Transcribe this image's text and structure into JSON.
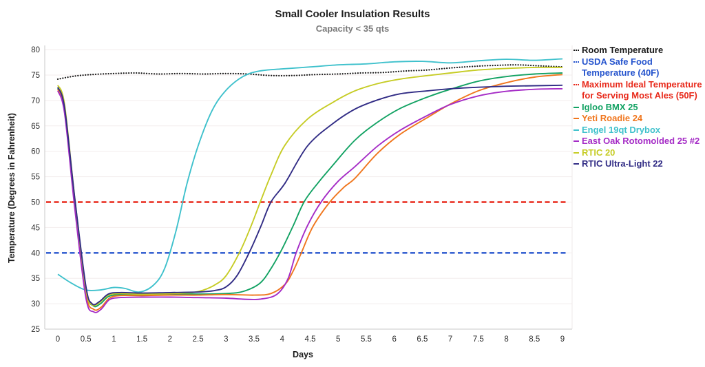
{
  "chart_data": {
    "type": "line",
    "title": "Small Cooler Insulation Results",
    "subtitle": "Capacity < 35 qts",
    "xlabel": "Days",
    "ylabel": "Temperature (Degrees in Fahrenheit)",
    "xlim": [
      0,
      9
    ],
    "ylim": [
      25,
      80
    ],
    "x_ticks": [
      0,
      0.5,
      1,
      1.5,
      2,
      2.5,
      3,
      3.5,
      4,
      4.5,
      5,
      5.5,
      6,
      6.5,
      7,
      7.5,
      8,
      8.5,
      9
    ],
    "y_ticks": [
      25,
      30,
      35,
      40,
      45,
      50,
      55,
      60,
      65,
      70,
      75,
      80
    ],
    "grid": true,
    "legend_position": "right",
    "series": [
      {
        "name": "Room Temperature",
        "legend_lines": [
          "Room Temperature"
        ],
        "color": "#1a1a1a",
        "dash": "dotted",
        "points": [
          [
            0,
            74.2
          ],
          [
            0.3,
            74.8
          ],
          [
            0.6,
            75.1
          ],
          [
            1,
            75.3
          ],
          [
            1.4,
            75.4
          ],
          [
            1.8,
            75.2
          ],
          [
            2.2,
            75.3
          ],
          [
            2.6,
            75.2
          ],
          [
            3,
            75.3
          ],
          [
            3.4,
            75.2
          ],
          [
            3.8,
            74.9
          ],
          [
            4.2,
            74.9
          ],
          [
            4.6,
            75.1
          ],
          [
            5,
            75.2
          ],
          [
            5.4,
            75.4
          ],
          [
            5.8,
            75.5
          ],
          [
            6.2,
            75.8
          ],
          [
            6.6,
            76.0
          ],
          [
            7,
            76.4
          ],
          [
            7.4,
            76.7
          ],
          [
            7.8,
            76.9
          ],
          [
            8.2,
            77.0
          ],
          [
            8.6,
            76.8
          ],
          [
            9,
            76.6
          ]
        ]
      },
      {
        "name": "USDA Safe Food Temperature (40F)",
        "legend_lines": [
          "USDA Safe Food",
          "Temperature (40F)"
        ],
        "color": "#2453cd",
        "dash": "dashed",
        "points": [
          [
            0,
            40
          ],
          [
            9,
            40
          ]
        ]
      },
      {
        "name": "Maximum Ideal Temperature for Serving Most Ales (50F)",
        "legend_lines": [
          "Maximum Ideal Temperature",
          "for Serving Most Ales (50F)"
        ],
        "color": "#e8291a",
        "dash": "dashed",
        "points": [
          [
            0,
            50
          ],
          [
            9,
            50
          ]
        ]
      },
      {
        "name": "Igloo BMX 25",
        "legend_lines": [
          "Igloo BMX 25"
        ],
        "color": "#12a263",
        "dash": "solid",
        "points": [
          [
            0,
            72.4
          ],
          [
            0.12,
            68
          ],
          [
            0.3,
            50.5
          ],
          [
            0.5,
            32.8
          ],
          [
            0.63,
            29.6
          ],
          [
            0.76,
            30.0
          ],
          [
            0.9,
            31.4
          ],
          [
            1.1,
            31.8
          ],
          [
            1.5,
            31.8
          ],
          [
            2,
            31.9
          ],
          [
            2.5,
            31.9
          ],
          [
            3,
            32.0
          ],
          [
            3.3,
            32.4
          ],
          [
            3.6,
            34.0
          ],
          [
            3.8,
            36.9
          ],
          [
            4,
            40.8
          ],
          [
            4.2,
            45.4
          ],
          [
            4.4,
            50.2
          ],
          [
            4.65,
            53.9
          ],
          [
            4.9,
            57.2
          ],
          [
            5.3,
            62.2
          ],
          [
            5.7,
            65.7
          ],
          [
            6.1,
            68.4
          ],
          [
            6.6,
            70.7
          ],
          [
            7,
            72.2
          ],
          [
            7.5,
            73.8
          ],
          [
            8,
            74.7
          ],
          [
            8.5,
            75.2
          ],
          [
            9,
            75.4
          ]
        ]
      },
      {
        "name": "Yeti Roadie 24",
        "legend_lines": [
          "Yeti Roadie 24"
        ],
        "color": "#f0761d",
        "dash": "solid",
        "points": [
          [
            0,
            72.2
          ],
          [
            0.12,
            67.8
          ],
          [
            0.3,
            50
          ],
          [
            0.5,
            32
          ],
          [
            0.64,
            28.9
          ],
          [
            0.77,
            29.3
          ],
          [
            0.92,
            31.1
          ],
          [
            1.1,
            31.6
          ],
          [
            1.5,
            31.6
          ],
          [
            2,
            31.7
          ],
          [
            2.5,
            31.7
          ],
          [
            3,
            31.8
          ],
          [
            3.5,
            31.7
          ],
          [
            3.8,
            32.0
          ],
          [
            4.05,
            33.8
          ],
          [
            4.2,
            36.5
          ],
          [
            4.35,
            40.2
          ],
          [
            4.55,
            45.2
          ],
          [
            4.85,
            50.0
          ],
          [
            5.1,
            52.9
          ],
          [
            5.3,
            54.7
          ],
          [
            5.7,
            59.6
          ],
          [
            6.1,
            63.3
          ],
          [
            6.6,
            66.7
          ],
          [
            7,
            69.3
          ],
          [
            7.5,
            71.9
          ],
          [
            8,
            73.5
          ],
          [
            8.5,
            74.6
          ],
          [
            9,
            75.1
          ]
        ]
      },
      {
        "name": "Engel 19qt Drybox",
        "legend_lines": [
          "Engel 19qt Drybox"
        ],
        "color": "#3fc1cc",
        "dash": "solid",
        "points": [
          [
            0,
            35.8
          ],
          [
            0.25,
            34.0
          ],
          [
            0.5,
            32.7
          ],
          [
            0.75,
            32.7
          ],
          [
            1,
            33.2
          ],
          [
            1.2,
            33.0
          ],
          [
            1.45,
            32.3
          ],
          [
            1.7,
            33.6
          ],
          [
            1.9,
            36.8
          ],
          [
            2.1,
            44.0
          ],
          [
            2.3,
            53.5
          ],
          [
            2.5,
            61.0
          ],
          [
            2.75,
            68.0
          ],
          [
            3,
            72.0
          ],
          [
            3.3,
            74.7
          ],
          [
            3.6,
            75.8
          ],
          [
            4,
            76.2
          ],
          [
            4.5,
            76.6
          ],
          [
            5,
            77.0
          ],
          [
            5.5,
            77.2
          ],
          [
            6,
            77.6
          ],
          [
            6.5,
            77.7
          ],
          [
            7,
            77.4
          ],
          [
            7.5,
            77.8
          ],
          [
            8,
            78.1
          ],
          [
            8.5,
            77.9
          ],
          [
            9,
            78.2
          ]
        ]
      },
      {
        "name": "East Oak Rotomolded 25 #2",
        "legend_lines": [
          "East Oak Rotomolded 25 #2"
        ],
        "color": "#a52cc6",
        "dash": "solid",
        "points": [
          [
            0,
            71.9
          ],
          [
            0.12,
            67.5
          ],
          [
            0.3,
            49
          ],
          [
            0.5,
            31.2
          ],
          [
            0.64,
            28.4
          ],
          [
            0.77,
            28.9
          ],
          [
            0.92,
            30.8
          ],
          [
            1.1,
            31.2
          ],
          [
            1.5,
            31.3
          ],
          [
            2,
            31.3
          ],
          [
            2.5,
            31.2
          ],
          [
            3,
            31.1
          ],
          [
            3.3,
            30.9
          ],
          [
            3.6,
            30.9
          ],
          [
            3.9,
            31.8
          ],
          [
            4.1,
            34.8
          ],
          [
            4.25,
            40.0
          ],
          [
            4.45,
            45.3
          ],
          [
            4.7,
            50.1
          ],
          [
            5,
            54.1
          ],
          [
            5.3,
            57.0
          ],
          [
            5.7,
            61.0
          ],
          [
            6.1,
            64.1
          ],
          [
            6.6,
            67.1
          ],
          [
            7,
            69.2
          ],
          [
            7.5,
            70.9
          ],
          [
            8,
            71.8
          ],
          [
            8.5,
            72.2
          ],
          [
            9,
            72.3
          ]
        ]
      },
      {
        "name": "RTIC 20",
        "legend_lines": [
          "RTIC 20"
        ],
        "color": "#c6cc25",
        "dash": "solid",
        "points": [
          [
            0,
            73.0
          ],
          [
            0.12,
            69.2
          ],
          [
            0.3,
            51
          ],
          [
            0.5,
            33
          ],
          [
            0.61,
            29.8
          ],
          [
            0.74,
            30.2
          ],
          [
            0.9,
            31.7
          ],
          [
            1.1,
            32.0
          ],
          [
            1.5,
            31.9
          ],
          [
            2,
            32.0
          ],
          [
            2.4,
            32.2
          ],
          [
            2.6,
            32.7
          ],
          [
            2.8,
            33.7
          ],
          [
            3,
            35.5
          ],
          [
            3.25,
            40.3
          ],
          [
            3.45,
            45.4
          ],
          [
            3.62,
            50.3
          ],
          [
            3.8,
            55.3
          ],
          [
            4.05,
            61.2
          ],
          [
            4.45,
            66.3
          ],
          [
            4.9,
            69.6
          ],
          [
            5.3,
            71.9
          ],
          [
            5.7,
            73.3
          ],
          [
            6.1,
            74.2
          ],
          [
            6.6,
            74.9
          ],
          [
            7,
            75.4
          ],
          [
            7.5,
            76.0
          ],
          [
            8,
            76.3
          ],
          [
            8.5,
            76.5
          ],
          [
            9,
            76.5
          ]
        ]
      },
      {
        "name": "RTIC Ultra-Light 22",
        "legend_lines": [
          "RTIC Ultra-Light 22"
        ],
        "color": "#312c85",
        "dash": "solid",
        "points": [
          [
            0,
            72.6
          ],
          [
            0.12,
            68.6
          ],
          [
            0.3,
            51
          ],
          [
            0.5,
            33.5
          ],
          [
            0.61,
            30.0
          ],
          [
            0.74,
            30.4
          ],
          [
            0.9,
            31.9
          ],
          [
            1.1,
            32.2
          ],
          [
            1.5,
            32.1
          ],
          [
            2,
            32.2
          ],
          [
            2.5,
            32.3
          ],
          [
            2.8,
            32.6
          ],
          [
            3,
            33.3
          ],
          [
            3.2,
            35.6
          ],
          [
            3.42,
            40.2
          ],
          [
            3.62,
            45.2
          ],
          [
            3.8,
            50.0
          ],
          [
            4.05,
            53.7
          ],
          [
            4.45,
            61.0
          ],
          [
            4.9,
            65.4
          ],
          [
            5.3,
            68.3
          ],
          [
            5.7,
            70.1
          ],
          [
            6.1,
            71.3
          ],
          [
            6.6,
            71.9
          ],
          [
            7,
            72.3
          ],
          [
            7.5,
            72.6
          ],
          [
            8,
            72.8
          ],
          [
            8.5,
            72.9
          ],
          [
            9,
            73.0
          ]
        ]
      }
    ]
  }
}
